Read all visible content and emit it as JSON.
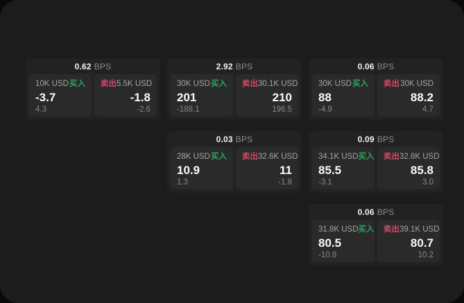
{
  "labels": {
    "bps_unit": "BPS",
    "buy": "买入",
    "sell": "卖出"
  },
  "colors": {
    "buy": "#2fa35c",
    "sell": "#cb4a6a",
    "window_background": "#1c1c1c",
    "card_background": "#222222",
    "panel_background": "#2a2a2a"
  },
  "cards": [
    {
      "bps": "0.62",
      "buy": {
        "size": "10K USD",
        "price": "-3.7",
        "change": "4.3"
      },
      "sell": {
        "size": "5.5K USD",
        "price": "-1.8",
        "change": "-2.6"
      }
    },
    {
      "bps": "2.92",
      "buy": {
        "size": "30K USD",
        "price": "201",
        "change": "-188.1"
      },
      "sell": {
        "size": "30.1K USD",
        "price": "210",
        "change": "196.5"
      }
    },
    {
      "bps": "0.06",
      "buy": {
        "size": "30K USD",
        "price": "88",
        "change": "-4.9"
      },
      "sell": {
        "size": "30K USD",
        "price": "88.2",
        "change": "4.7"
      }
    },
    {
      "bps": "0.03",
      "buy": {
        "size": "28K USD",
        "price": "10.9",
        "change": "1.3"
      },
      "sell": {
        "size": "32.6K USD",
        "price": "11",
        "change": "-1.8"
      }
    },
    {
      "bps": "0.09",
      "buy": {
        "size": "34.1K USD",
        "price": "85.5",
        "change": "-3.1"
      },
      "sell": {
        "size": "32.8K USD",
        "price": "85.8",
        "change": "3.0"
      }
    },
    {
      "bps": "0.06",
      "buy": {
        "size": "31.8K USD",
        "price": "80.5",
        "change": "-10.8"
      },
      "sell": {
        "size": "39.1K USD",
        "price": "80.7",
        "change": "10.2"
      }
    }
  ]
}
